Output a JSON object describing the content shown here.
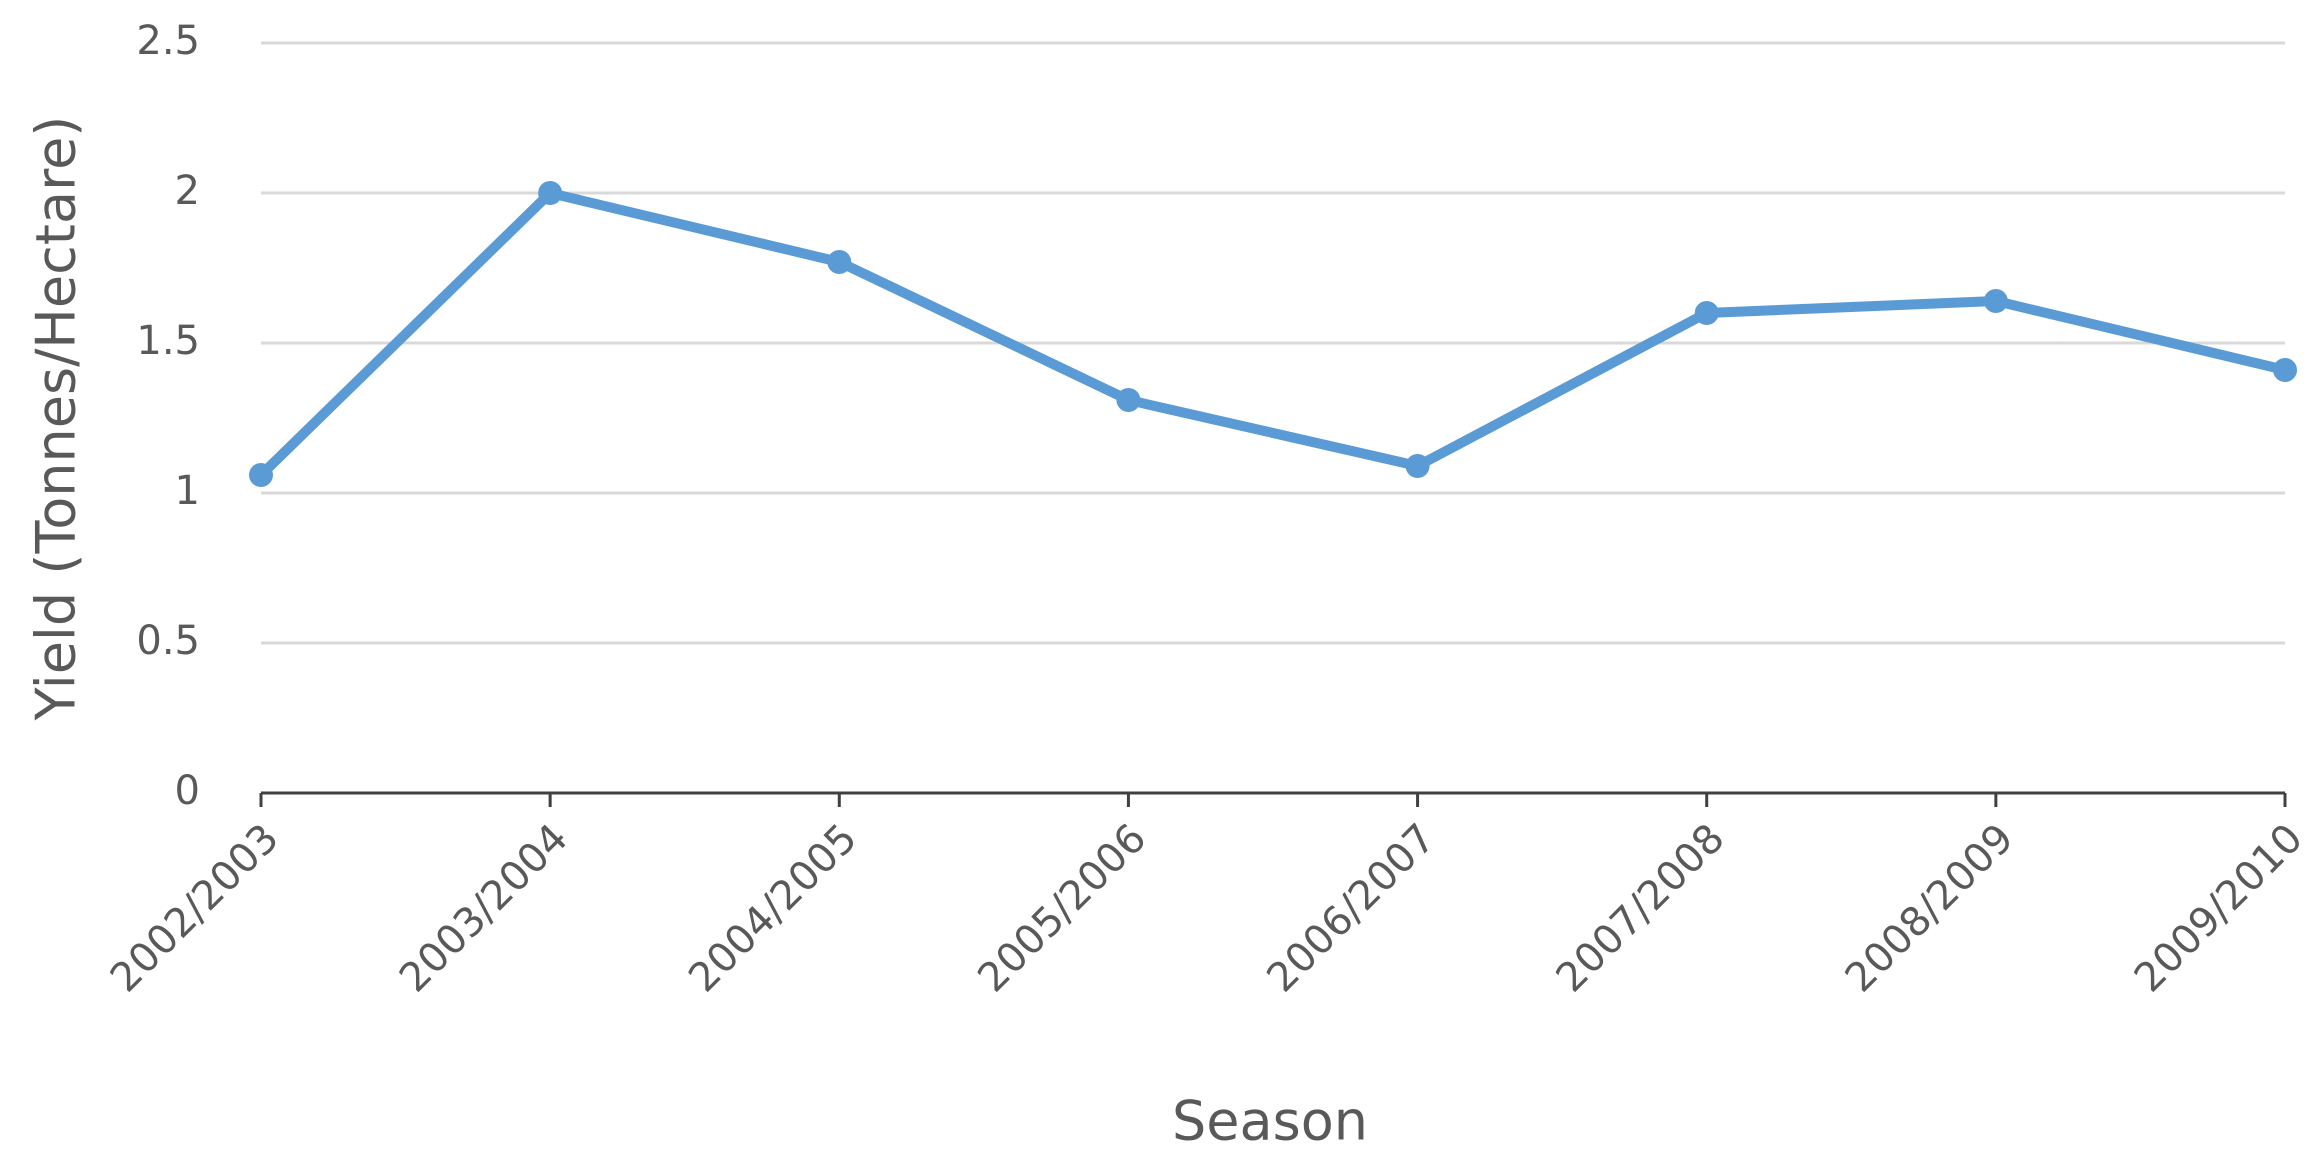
{
  "chart_data": {
    "type": "line",
    "x_label": "Season",
    "y_label": "Yield (Tonnes/Hectare)",
    "categories": [
      "2002/2003",
      "2003/2004",
      "2004/2005",
      "2005/2006",
      "2006/2007",
      "2007/2008",
      "2008/2009",
      "2009/2010"
    ],
    "series": [
      {
        "name": "Yield",
        "color": "#5b9bd5",
        "values": [
          1.06,
          2.0,
          1.77,
          1.31,
          1.09,
          1.6,
          1.64,
          1.41
        ]
      }
    ],
    "ylim": [
      0,
      2.5
    ],
    "yticks": [
      0,
      0.5,
      1,
      1.5,
      2,
      2.5
    ],
    "grid": true
  }
}
